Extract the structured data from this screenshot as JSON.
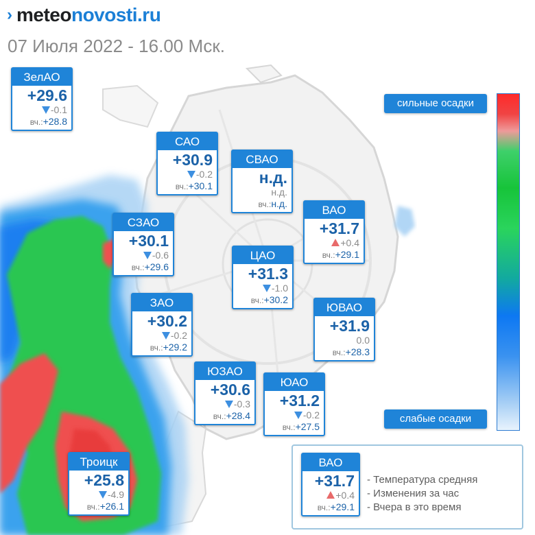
{
  "header": {
    "logo": {
      "prefix": "meteo",
      "brand": "novosti",
      "domain": ".ru"
    },
    "date": "07 Июля 2022 - 16.00 Мск."
  },
  "yesterday_label": "вч.:",
  "districts": [
    {
      "name": "ЗелАО",
      "temp": "+29.6",
      "trend": "down",
      "change": "-0.1",
      "yesterday": "+28.8"
    },
    {
      "name": "САО",
      "temp": "+30.9",
      "trend": "down",
      "change": "-0.2",
      "yesterday": "+30.1"
    },
    {
      "name": "СВАО",
      "temp": "н.д.",
      "trend": "none",
      "change": "н.д.",
      "yesterday": "н.д."
    },
    {
      "name": "ВАО",
      "temp": "+31.7",
      "trend": "up",
      "change": "+0.4",
      "yesterday": "+29.1"
    },
    {
      "name": "СЗАО",
      "temp": "+30.1",
      "trend": "down",
      "change": "-0.6",
      "yesterday": "+29.6"
    },
    {
      "name": "ЦАО",
      "temp": "+31.3",
      "trend": "down",
      "change": "-1.0",
      "yesterday": "+30.2"
    },
    {
      "name": "ЗАО",
      "temp": "+30.2",
      "trend": "down",
      "change": "-0.2",
      "yesterday": "+29.2"
    },
    {
      "name": "ЮВАО",
      "temp": "+31.9",
      "trend": "none",
      "change": "0.0",
      "yesterday": "+28.3"
    },
    {
      "name": "ЮЗАО",
      "temp": "+30.6",
      "trend": "down",
      "change": "-0.3",
      "yesterday": "+28.4"
    },
    {
      "name": "ЮАО",
      "temp": "+31.2",
      "trend": "down",
      "change": "-0.2",
      "yesterday": "+27.5"
    },
    {
      "name": "Троицк",
      "temp": "+25.8",
      "trend": "down",
      "change": "-4.9",
      "yesterday": "+26.1"
    }
  ],
  "scale": {
    "top_label": "сильные осадки",
    "bottom_label": "слабые осадки",
    "gradient_colors": [
      "#ff2a2a",
      "#ef9a9a",
      "#17c43a",
      "#0d78f2",
      "#e8f3fd"
    ]
  },
  "legend": {
    "example": {
      "name": "ВАО",
      "temp": "+31.7",
      "trend": "up",
      "change": "+0.4",
      "yesterday": "+29.1"
    },
    "lines": [
      "- Температура средняя",
      "- Изменения за час",
      "- Вчера в это время"
    ]
  },
  "colors": {
    "accent": "#1f84d8",
    "temperature_text": "#1b62a8",
    "trend_down": "#3d8fe0",
    "trend_up": "#e86a6a",
    "rain_heavy": "#f04444",
    "rain_medium": "#17c43a",
    "rain_light": "#1a7cf0"
  }
}
